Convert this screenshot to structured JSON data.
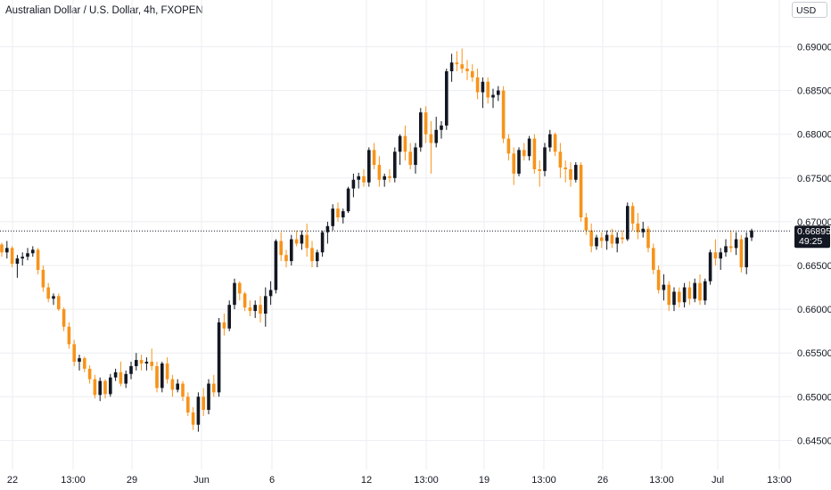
{
  "chart_data": {
    "type": "candlestick",
    "title": "Australian Dollar / U.S. Dollar, 4h, FXOPEN",
    "currency": "USD",
    "y_ticks": [
      "0.69000",
      "0.68500",
      "0.68000",
      "0.67500",
      "0.67000",
      "0.66500",
      "0.66000",
      "0.65500",
      "0.65000",
      "0.64500"
    ],
    "x_ticks": [
      "22",
      "13:00",
      "29",
      "Jun",
      "6",
      "12",
      "13:00",
      "19",
      "13:00",
      "26",
      "13:00",
      "Jul",
      "13:00"
    ],
    "ylim": [
      0.6432,
      0.6917
    ],
    "current_price": "0.66895",
    "countdown": "49:25",
    "colors": {
      "up": "#131722",
      "down": "#f7931a",
      "grid": "#eceef2",
      "price_line": "#131722",
      "price_label_bg": "#131722",
      "price_label_text": "#ffffff"
    },
    "candles": [
      [
        0.6674,
        0.6676,
        0.666,
        0.6665
      ],
      [
        0.6665,
        0.6678,
        0.6658,
        0.667
      ],
      [
        0.667,
        0.6672,
        0.6648,
        0.6652
      ],
      [
        0.6652,
        0.6662,
        0.6636,
        0.6658
      ],
      [
        0.6658,
        0.6665,
        0.665,
        0.666
      ],
      [
        0.666,
        0.667,
        0.6656,
        0.6664
      ],
      [
        0.6664,
        0.6672,
        0.666,
        0.6668
      ],
      [
        0.6668,
        0.667,
        0.664,
        0.6645
      ],
      [
        0.6645,
        0.665,
        0.662,
        0.6625
      ],
      [
        0.6625,
        0.663,
        0.6608,
        0.6612
      ],
      [
        0.6612,
        0.6618,
        0.6605,
        0.6615
      ],
      [
        0.6615,
        0.6618,
        0.6598,
        0.66
      ],
      [
        0.66,
        0.6602,
        0.6575,
        0.658
      ],
      [
        0.658,
        0.6585,
        0.6555,
        0.656
      ],
      [
        0.656,
        0.6565,
        0.6535,
        0.654
      ],
      [
        0.654,
        0.6548,
        0.653,
        0.6544
      ],
      [
        0.6544,
        0.6546,
        0.6528,
        0.6532
      ],
      [
        0.6532,
        0.6536,
        0.6515,
        0.652
      ],
      [
        0.652,
        0.6525,
        0.6498,
        0.6502
      ],
      [
        0.6502,
        0.6522,
        0.6495,
        0.6518
      ],
      [
        0.6518,
        0.652,
        0.6498,
        0.6503
      ],
      [
        0.6503,
        0.6526,
        0.65,
        0.6522
      ],
      [
        0.6522,
        0.6532,
        0.6518,
        0.6528
      ],
      [
        0.6528,
        0.654,
        0.6512,
        0.6515
      ],
      [
        0.6515,
        0.653,
        0.651,
        0.6526
      ],
      [
        0.6526,
        0.654,
        0.652,
        0.6535
      ],
      [
        0.6535,
        0.655,
        0.653,
        0.6542
      ],
      [
        0.6542,
        0.6548,
        0.653,
        0.6538
      ],
      [
        0.6538,
        0.6545,
        0.653,
        0.654
      ],
      [
        0.654,
        0.6555,
        0.653,
        0.6535
      ],
      [
        0.6535,
        0.654,
        0.6505,
        0.651
      ],
      [
        0.651,
        0.654,
        0.6505,
        0.6538
      ],
      [
        0.6538,
        0.6545,
        0.6515,
        0.652
      ],
      [
        0.652,
        0.6525,
        0.65,
        0.6508
      ],
      [
        0.6508,
        0.652,
        0.6505,
        0.6515
      ],
      [
        0.6515,
        0.6518,
        0.6495,
        0.65
      ],
      [
        0.65,
        0.6505,
        0.6478,
        0.6482
      ],
      [
        0.6482,
        0.6488,
        0.6462,
        0.6468
      ],
      [
        0.6468,
        0.6505,
        0.646,
        0.65
      ],
      [
        0.65,
        0.651,
        0.6478,
        0.6485
      ],
      [
        0.6485,
        0.652,
        0.648,
        0.6515
      ],
      [
        0.6515,
        0.6525,
        0.65,
        0.6505
      ],
      [
        0.6505,
        0.659,
        0.65,
        0.6585
      ],
      [
        0.6585,
        0.6595,
        0.657,
        0.6578
      ],
      [
        0.6578,
        0.661,
        0.6575,
        0.6605
      ],
      [
        0.6605,
        0.6635,
        0.66,
        0.663
      ],
      [
        0.663,
        0.6632,
        0.661,
        0.6618
      ],
      [
        0.6618,
        0.662,
        0.6598,
        0.6602
      ],
      [
        0.6602,
        0.661,
        0.6592,
        0.6598
      ],
      [
        0.6598,
        0.661,
        0.659,
        0.6605
      ],
      [
        0.6605,
        0.6615,
        0.6585,
        0.6595
      ],
      [
        0.6595,
        0.6625,
        0.658,
        0.6615
      ],
      [
        0.6615,
        0.6632,
        0.6605,
        0.6622
      ],
      [
        0.6622,
        0.668,
        0.6618,
        0.6678
      ],
      [
        0.6678,
        0.6688,
        0.6655,
        0.6662
      ],
      [
        0.6662,
        0.6668,
        0.6648,
        0.6655
      ],
      [
        0.6655,
        0.6685,
        0.665,
        0.668
      ],
      [
        0.668,
        0.669,
        0.6672,
        0.6675
      ],
      [
        0.6675,
        0.669,
        0.6668,
        0.6685
      ],
      [
        0.6685,
        0.6698,
        0.666,
        0.667
      ],
      [
        0.667,
        0.6678,
        0.6648,
        0.6655
      ],
      [
        0.6655,
        0.6668,
        0.6648,
        0.6665
      ],
      [
        0.6665,
        0.669,
        0.666,
        0.6688
      ],
      [
        0.6688,
        0.67,
        0.6675,
        0.6695
      ],
      [
        0.6695,
        0.672,
        0.669,
        0.6715
      ],
      [
        0.6715,
        0.6722,
        0.67,
        0.6705
      ],
      [
        0.6705,
        0.6715,
        0.6698,
        0.6712
      ],
      [
        0.6712,
        0.674,
        0.671,
        0.6738
      ],
      [
        0.6738,
        0.6755,
        0.6728,
        0.6748
      ],
      [
        0.6748,
        0.6756,
        0.6738,
        0.6752
      ],
      [
        0.6752,
        0.676,
        0.674,
        0.6745
      ],
      [
        0.6745,
        0.6785,
        0.674,
        0.6782
      ],
      [
        0.6782,
        0.679,
        0.676,
        0.6765
      ],
      [
        0.6765,
        0.6775,
        0.674,
        0.6748
      ],
      [
        0.6748,
        0.6755,
        0.674,
        0.6752
      ],
      [
        0.6752,
        0.676,
        0.6745,
        0.675
      ],
      [
        0.675,
        0.6785,
        0.6745,
        0.678
      ],
      [
        0.678,
        0.68,
        0.6765,
        0.6798
      ],
      [
        0.6798,
        0.681,
        0.677,
        0.678
      ],
      [
        0.678,
        0.679,
        0.676,
        0.6765
      ],
      [
        0.6765,
        0.679,
        0.6755,
        0.6785
      ],
      [
        0.6785,
        0.683,
        0.678,
        0.6825
      ],
      [
        0.6825,
        0.6832,
        0.679,
        0.68
      ],
      [
        0.68,
        0.6815,
        0.6755,
        0.679
      ],
      [
        0.679,
        0.682,
        0.6785,
        0.6805
      ],
      [
        0.6805,
        0.6815,
        0.6795,
        0.681
      ],
      [
        0.681,
        0.6875,
        0.6805,
        0.6872
      ],
      [
        0.6872,
        0.6892,
        0.686,
        0.6882
      ],
      [
        0.6882,
        0.6895,
        0.6872,
        0.688
      ],
      [
        0.688,
        0.6898,
        0.687,
        0.6875
      ],
      [
        0.6875,
        0.6885,
        0.6862,
        0.6872
      ],
      [
        0.6872,
        0.688,
        0.686,
        0.6865
      ],
      [
        0.6865,
        0.6875,
        0.684,
        0.6848
      ],
      [
        0.6848,
        0.6865,
        0.683,
        0.686
      ],
      [
        0.686,
        0.6865,
        0.6835,
        0.6842
      ],
      [
        0.6842,
        0.6852,
        0.683,
        0.6845
      ],
      [
        0.6845,
        0.6855,
        0.6838,
        0.685
      ],
      [
        0.685,
        0.6855,
        0.679,
        0.6795
      ],
      [
        0.6795,
        0.68,
        0.677,
        0.6778
      ],
      [
        0.6778,
        0.6785,
        0.6742,
        0.6755
      ],
      [
        0.6755,
        0.6785,
        0.6752,
        0.6782
      ],
      [
        0.6782,
        0.679,
        0.677,
        0.6775
      ],
      [
        0.6775,
        0.6798,
        0.677,
        0.6795
      ],
      [
        0.6795,
        0.68,
        0.6755,
        0.676
      ],
      [
        0.676,
        0.677,
        0.674,
        0.6758
      ],
      [
        0.6758,
        0.679,
        0.6752,
        0.6785
      ],
      [
        0.6785,
        0.6805,
        0.678,
        0.68
      ],
      [
        0.68,
        0.6802,
        0.6775,
        0.678
      ],
      [
        0.678,
        0.679,
        0.675,
        0.6762
      ],
      [
        0.6762,
        0.677,
        0.6745,
        0.676
      ],
      [
        0.676,
        0.6768,
        0.674,
        0.6748
      ],
      [
        0.6748,
        0.6768,
        0.6745,
        0.6765
      ],
      [
        0.6765,
        0.6768,
        0.67,
        0.6705
      ],
      [
        0.6705,
        0.671,
        0.6685,
        0.669
      ],
      [
        0.669,
        0.6698,
        0.6665,
        0.6672
      ],
      [
        0.6672,
        0.6685,
        0.6668,
        0.6682
      ],
      [
        0.6682,
        0.6688,
        0.667,
        0.6678
      ],
      [
        0.6678,
        0.669,
        0.6668,
        0.6685
      ],
      [
        0.6685,
        0.6692,
        0.667,
        0.6675
      ],
      [
        0.6675,
        0.6688,
        0.6665,
        0.6682
      ],
      [
        0.6682,
        0.669,
        0.6675,
        0.668
      ],
      [
        0.668,
        0.6722,
        0.6678,
        0.6718
      ],
      [
        0.6718,
        0.6722,
        0.669,
        0.6698
      ],
      [
        0.6698,
        0.671,
        0.668,
        0.6688
      ],
      [
        0.6688,
        0.67,
        0.6682,
        0.6692
      ],
      [
        0.6692,
        0.6695,
        0.6665,
        0.667
      ],
      [
        0.667,
        0.6675,
        0.664,
        0.6645
      ],
      [
        0.6645,
        0.665,
        0.6618,
        0.6622
      ],
      [
        0.6622,
        0.664,
        0.661,
        0.6628
      ],
      [
        0.6628,
        0.6632,
        0.6598,
        0.6605
      ],
      [
        0.6605,
        0.6625,
        0.6598,
        0.662
      ],
      [
        0.662,
        0.6625,
        0.6602,
        0.6608
      ],
      [
        0.6608,
        0.663,
        0.6602,
        0.6625
      ],
      [
        0.6625,
        0.6632,
        0.6605,
        0.6612
      ],
      [
        0.6612,
        0.6635,
        0.6608,
        0.663
      ],
      [
        0.663,
        0.664,
        0.6605,
        0.661
      ],
      [
        0.661,
        0.6635,
        0.6605,
        0.6632
      ],
      [
        0.6632,
        0.6668,
        0.6628,
        0.6665
      ],
      [
        0.6665,
        0.668,
        0.665,
        0.6658
      ],
      [
        0.6658,
        0.667,
        0.6645,
        0.6665
      ],
      [
        0.6665,
        0.668,
        0.666,
        0.6672
      ],
      [
        0.6672,
        0.669,
        0.6665,
        0.667
      ],
      [
        0.667,
        0.6688,
        0.6662,
        0.668
      ],
      [
        0.668,
        0.6685,
        0.6642,
        0.6648
      ],
      [
        0.6648,
        0.6688,
        0.664,
        0.6682
      ],
      [
        0.6682,
        0.6692,
        0.6678,
        0.669
      ]
    ]
  }
}
